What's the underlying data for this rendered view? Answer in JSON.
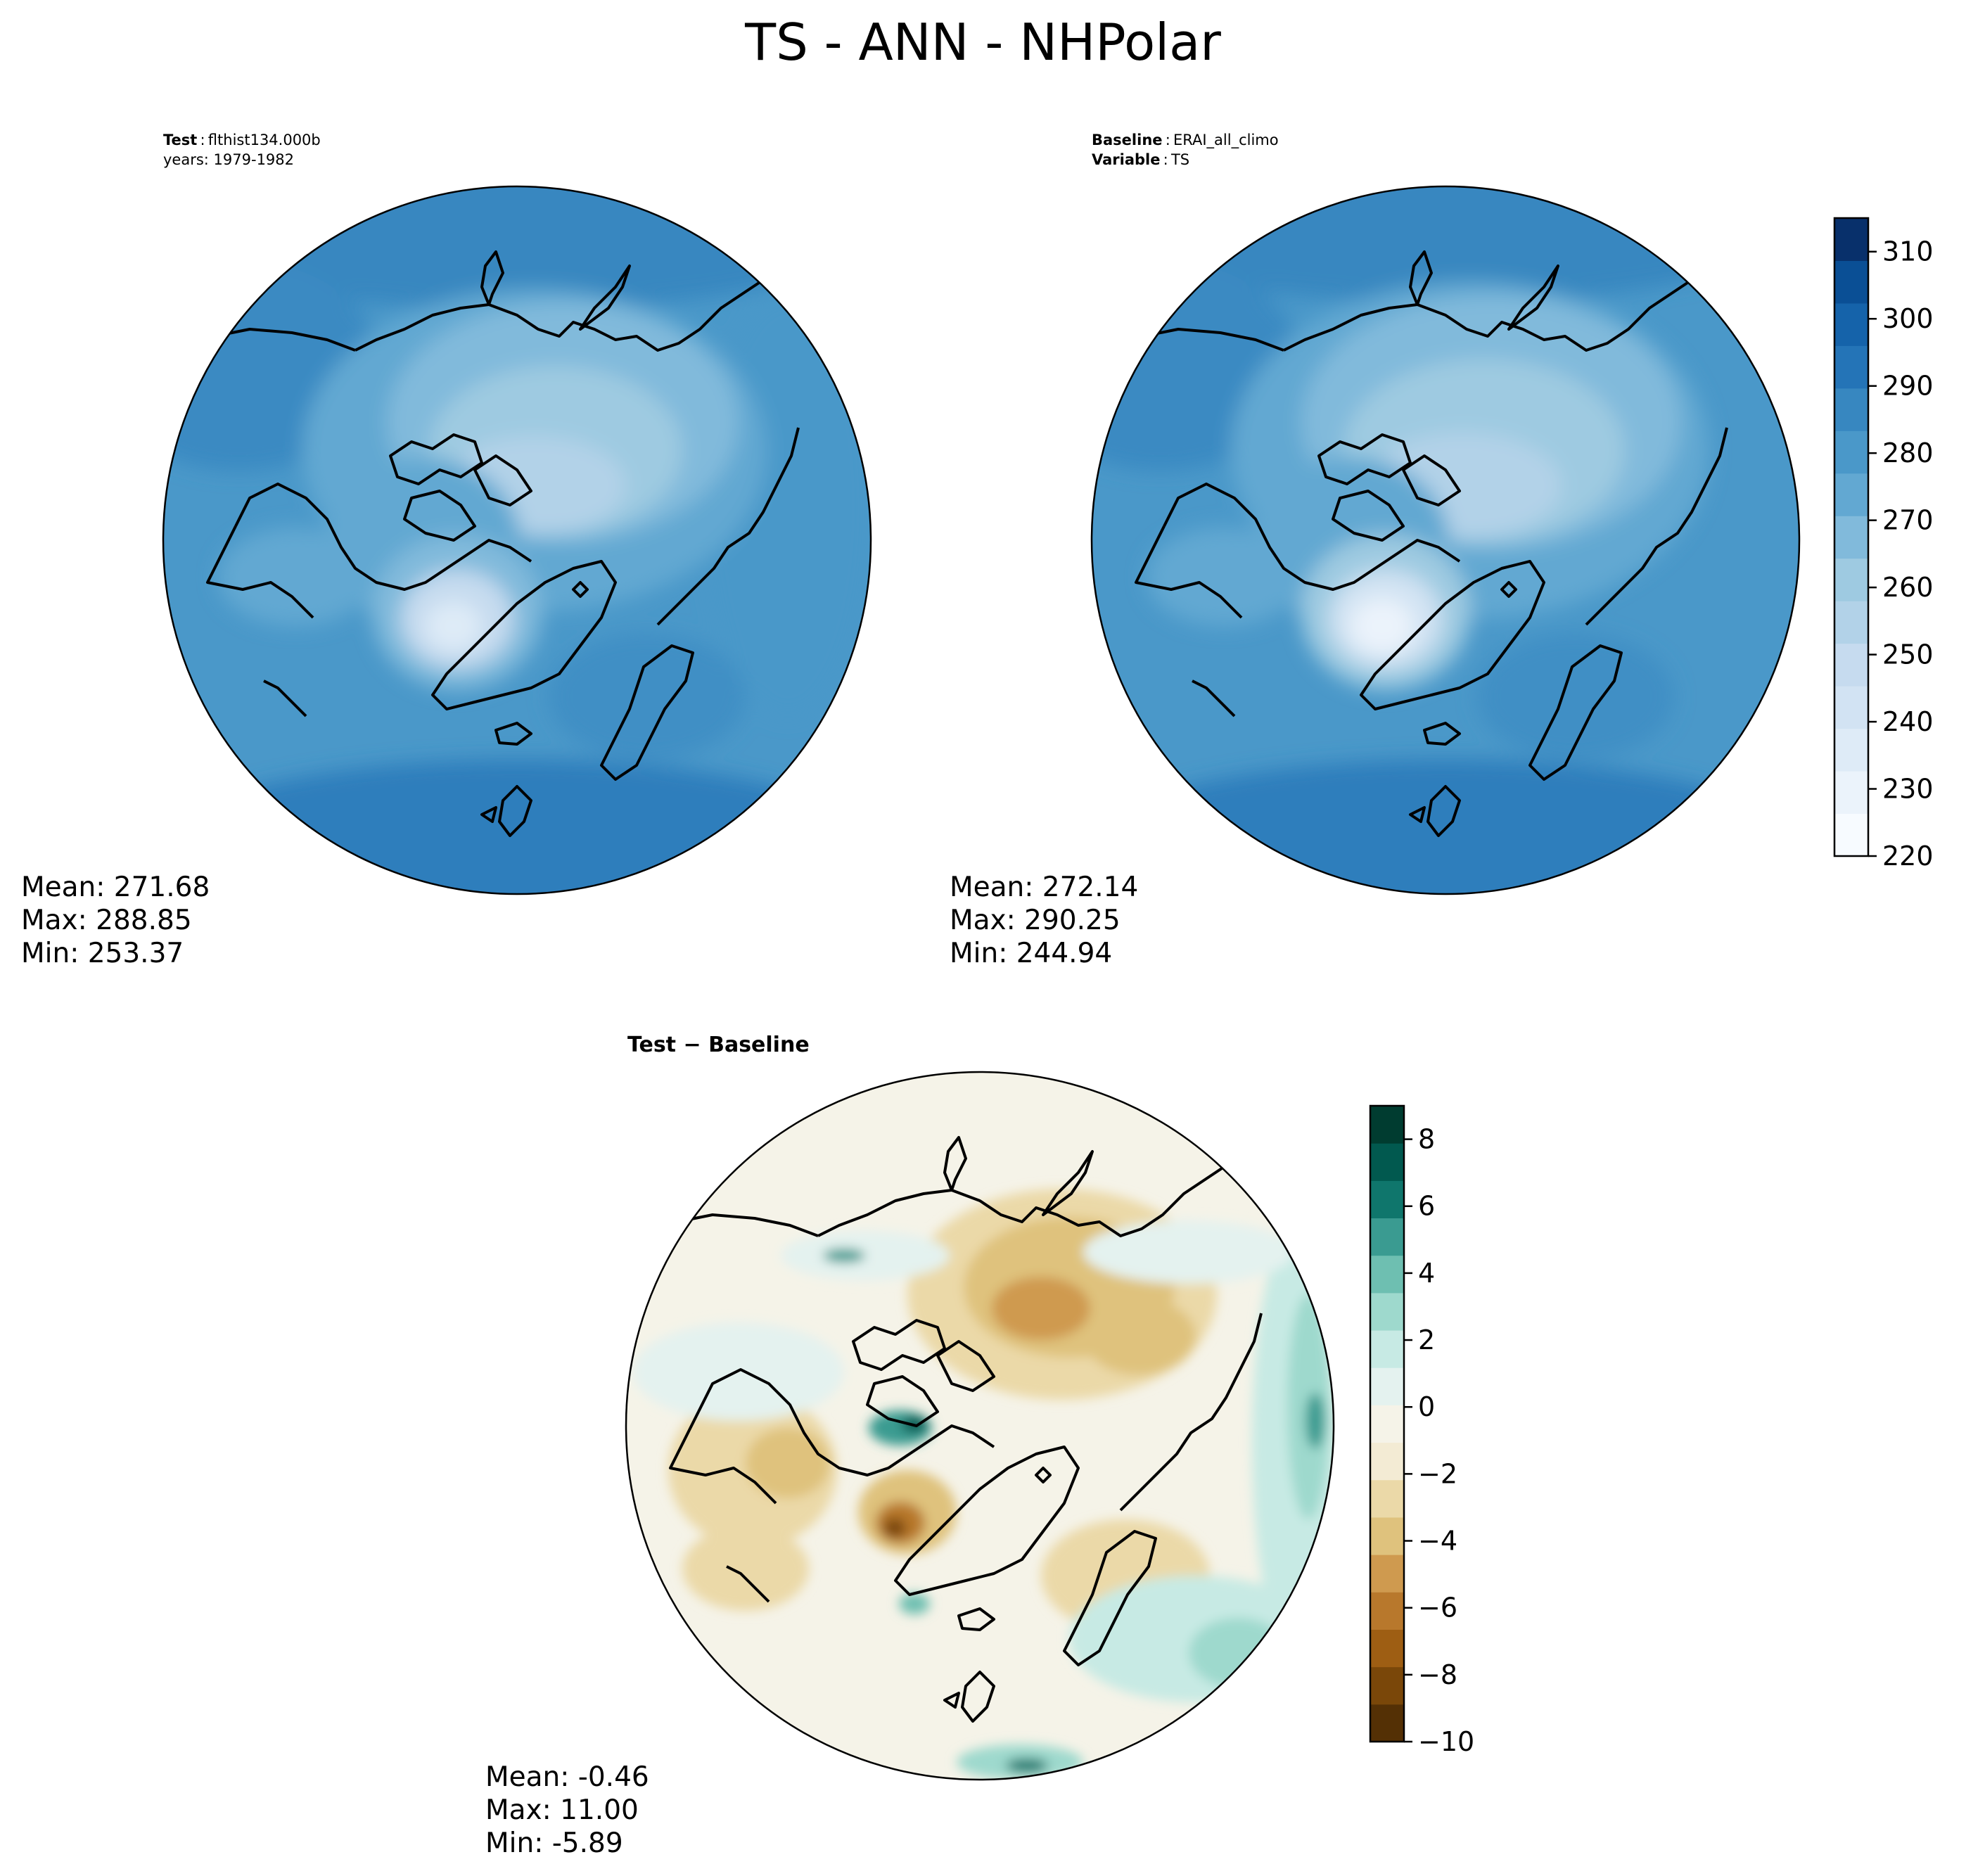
{
  "title": "TS - ANN - NHPolar",
  "test_panel": {
    "label_bold": "Test",
    "case": "flthist134.000b",
    "years": "years: 1979-1982",
    "stats": {
      "mean": "Mean: 271.68",
      "max": "Max: 288.85",
      "min": "Min: 253.37"
    }
  },
  "baseline_panel": {
    "label_bold": "Baseline",
    "case": "ERAI_all_climo",
    "var_label_bold": "Variable",
    "var": "TS",
    "stats": {
      "mean": "Mean: 272.14",
      "max": "Max: 290.25",
      "min": "Min: 244.94"
    }
  },
  "diff_panel": {
    "title_bold_a": "Test",
    "title_op": "−",
    "title_bold_b": "Baseline",
    "stats": {
      "mean": "Mean: -0.46",
      "max": "Max: 11.00",
      "min": "Min: -5.89"
    }
  },
  "abs_colorbar": {
    "ticks": [
      "220",
      "230",
      "240",
      "250",
      "260",
      "270",
      "280",
      "290",
      "300",
      "310"
    ],
    "range": [
      220,
      315
    ],
    "colors": [
      "#f7fbff",
      "#ebf3fb",
      "#deebf7",
      "#d2e3f3",
      "#c6dbef",
      "#b2d2e8",
      "#9ecae1",
      "#81badb",
      "#62a8d2",
      "#4a98c9",
      "#3787c0",
      "#2474b7",
      "#1563aa",
      "#0a4f95",
      "#08306b"
    ]
  },
  "diff_colorbar": {
    "ticks": [
      "−10",
      "−8",
      "−6",
      "−4",
      "−2",
      "0",
      "2",
      "4",
      "6",
      "8"
    ],
    "range": [
      -10,
      9
    ],
    "colors": [
      "#543005",
      "#7a4709",
      "#9e5e13",
      "#b8782c",
      "#cf9a4f",
      "#dfc27d",
      "#ebd9a8",
      "#f3ebd4",
      "#f5f3e8",
      "#e4f2ef",
      "#c7eae4",
      "#9ed9cd",
      "#6ebfb1",
      "#3a9b91",
      "#0f766c",
      "#01594f",
      "#003c30"
    ]
  }
}
